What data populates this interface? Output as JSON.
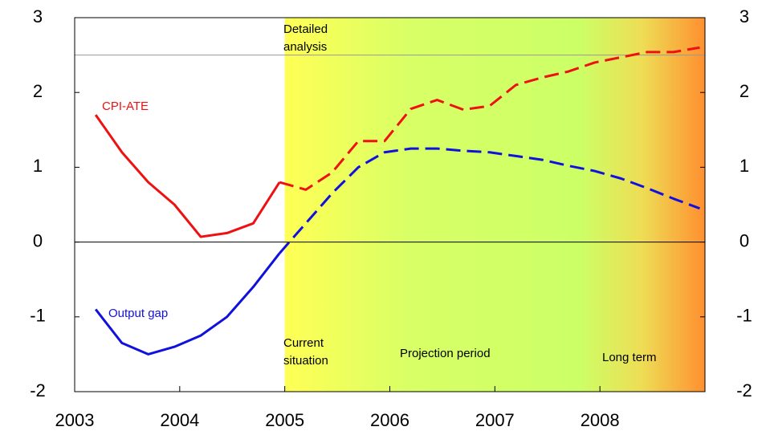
{
  "chart_data": {
    "type": "line",
    "x": [
      2003.2,
      2003.45,
      2003.7,
      2003.95,
      2004.2,
      2004.45,
      2004.7,
      2004.95,
      2005.2,
      2005.45,
      2005.7,
      2005.95,
      2006.2,
      2006.45,
      2006.7,
      2006.95,
      2007.2,
      2007.45,
      2007.7,
      2007.95,
      2008.2,
      2008.45,
      2008.7,
      2008.95
    ],
    "series": [
      {
        "name": "CPI-ATE",
        "color": "#ee1111",
        "values": [
          1.7,
          1.2,
          0.8,
          0.5,
          0.07,
          0.12,
          0.25,
          0.8,
          0.7,
          0.93,
          1.35,
          1.35,
          1.78,
          1.9,
          1.77,
          1.82,
          2.1,
          2.2,
          2.28,
          2.4,
          2.47,
          2.54,
          2.54,
          2.6
        ]
      },
      {
        "name": "Output gap",
        "color": "#1111dd",
        "values": [
          -0.9,
          -1.35,
          -1.5,
          -1.4,
          -1.25,
          -1.0,
          -0.6,
          -0.15,
          0.25,
          0.65,
          1.0,
          1.2,
          1.25,
          1.25,
          1.22,
          1.2,
          1.15,
          1.1,
          1.02,
          0.95,
          0.85,
          0.72,
          0.58,
          0.45
        ]
      }
    ],
    "xlim": [
      2003,
      2009
    ],
    "xticks": [
      2003,
      2004,
      2005,
      2006,
      2007,
      2008
    ],
    "ylim": [
      -2,
      3
    ],
    "yticks": [
      -2,
      -1,
      0,
      1,
      2,
      3
    ],
    "y2lim": [
      -2,
      3
    ],
    "y2ticks": [
      -2,
      -1,
      0,
      1,
      2,
      3
    ],
    "projection_start": 2005,
    "hlines": [
      {
        "value": 2.5,
        "color": "#999999"
      },
      {
        "value": 0,
        "color": "#000000"
      }
    ],
    "annotations": [
      {
        "lines": [
          "Detailed",
          "analysis"
        ]
      },
      {
        "lines": [
          "Current",
          "situation"
        ]
      },
      {
        "lines": [
          "Projection period"
        ]
      },
      {
        "lines": [
          "Long term"
        ]
      }
    ]
  }
}
